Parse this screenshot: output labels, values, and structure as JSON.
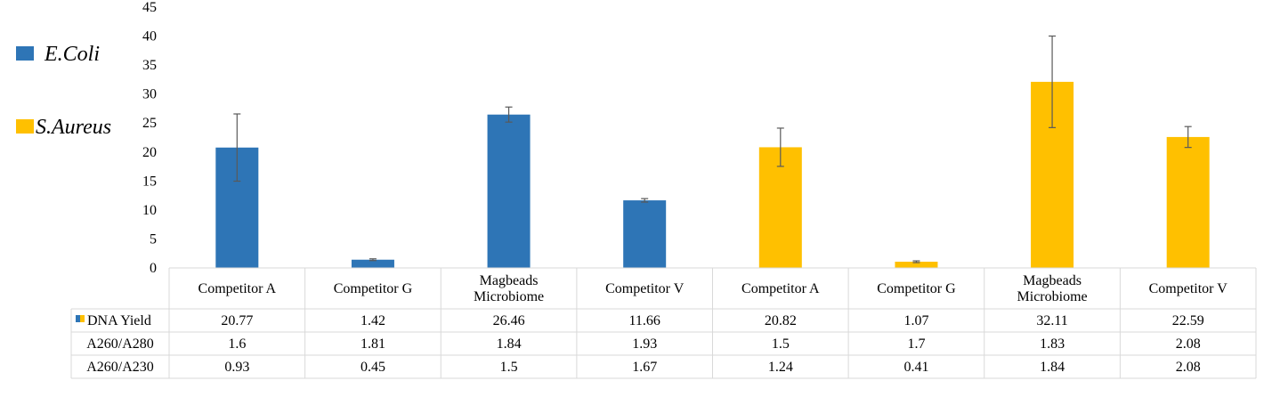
{
  "chart_data": {
    "type": "bar",
    "categories": [
      [
        "Competitor A"
      ],
      [
        "Competitor G"
      ],
      [
        "Magbeads",
        "Microbiome"
      ],
      [
        "Competitor V"
      ],
      [
        "Competitor A"
      ],
      [
        "Competitor G"
      ],
      [
        "Magbeads",
        "Microbiome"
      ],
      [
        "Competitor V"
      ]
    ],
    "values": [
      20.77,
      1.42,
      26.46,
      11.66,
      20.82,
      1.07,
      32.11,
      22.59
    ],
    "error": [
      5.8,
      0.15,
      1.3,
      0.3,
      3.3,
      0.15,
      7.9,
      1.8
    ],
    "bar_series": [
      0,
      0,
      0,
      0,
      1,
      1,
      1,
      1
    ],
    "series": [
      {
        "name": "E.Coli",
        "color": "#2e75b6"
      },
      {
        "name": "S.Aureus",
        "color": "#ffc000"
      }
    ],
    "ylim": [
      0,
      45
    ],
    "yticks": [
      0,
      5,
      10,
      15,
      20,
      25,
      30,
      35,
      40,
      45
    ],
    "legend_position": "left",
    "grid": false,
    "table_rows": [
      {
        "label": "DNA Yield",
        "key": true,
        "values": [
          "20.77",
          "1.42",
          "26.46",
          "11.66",
          "20.82",
          "1.07",
          "32.11",
          "22.59"
        ]
      },
      {
        "label": "A260/A280",
        "key": false,
        "values": [
          "1.6",
          "1.81",
          "1.84",
          "1.93",
          "1.5",
          "1.7",
          "1.83",
          "2.08"
        ]
      },
      {
        "label": "A260/A230",
        "key": false,
        "values": [
          "0.93",
          "0.45",
          "1.5",
          "1.67",
          "1.24",
          "0.41",
          "1.84",
          "2.08"
        ]
      }
    ]
  }
}
